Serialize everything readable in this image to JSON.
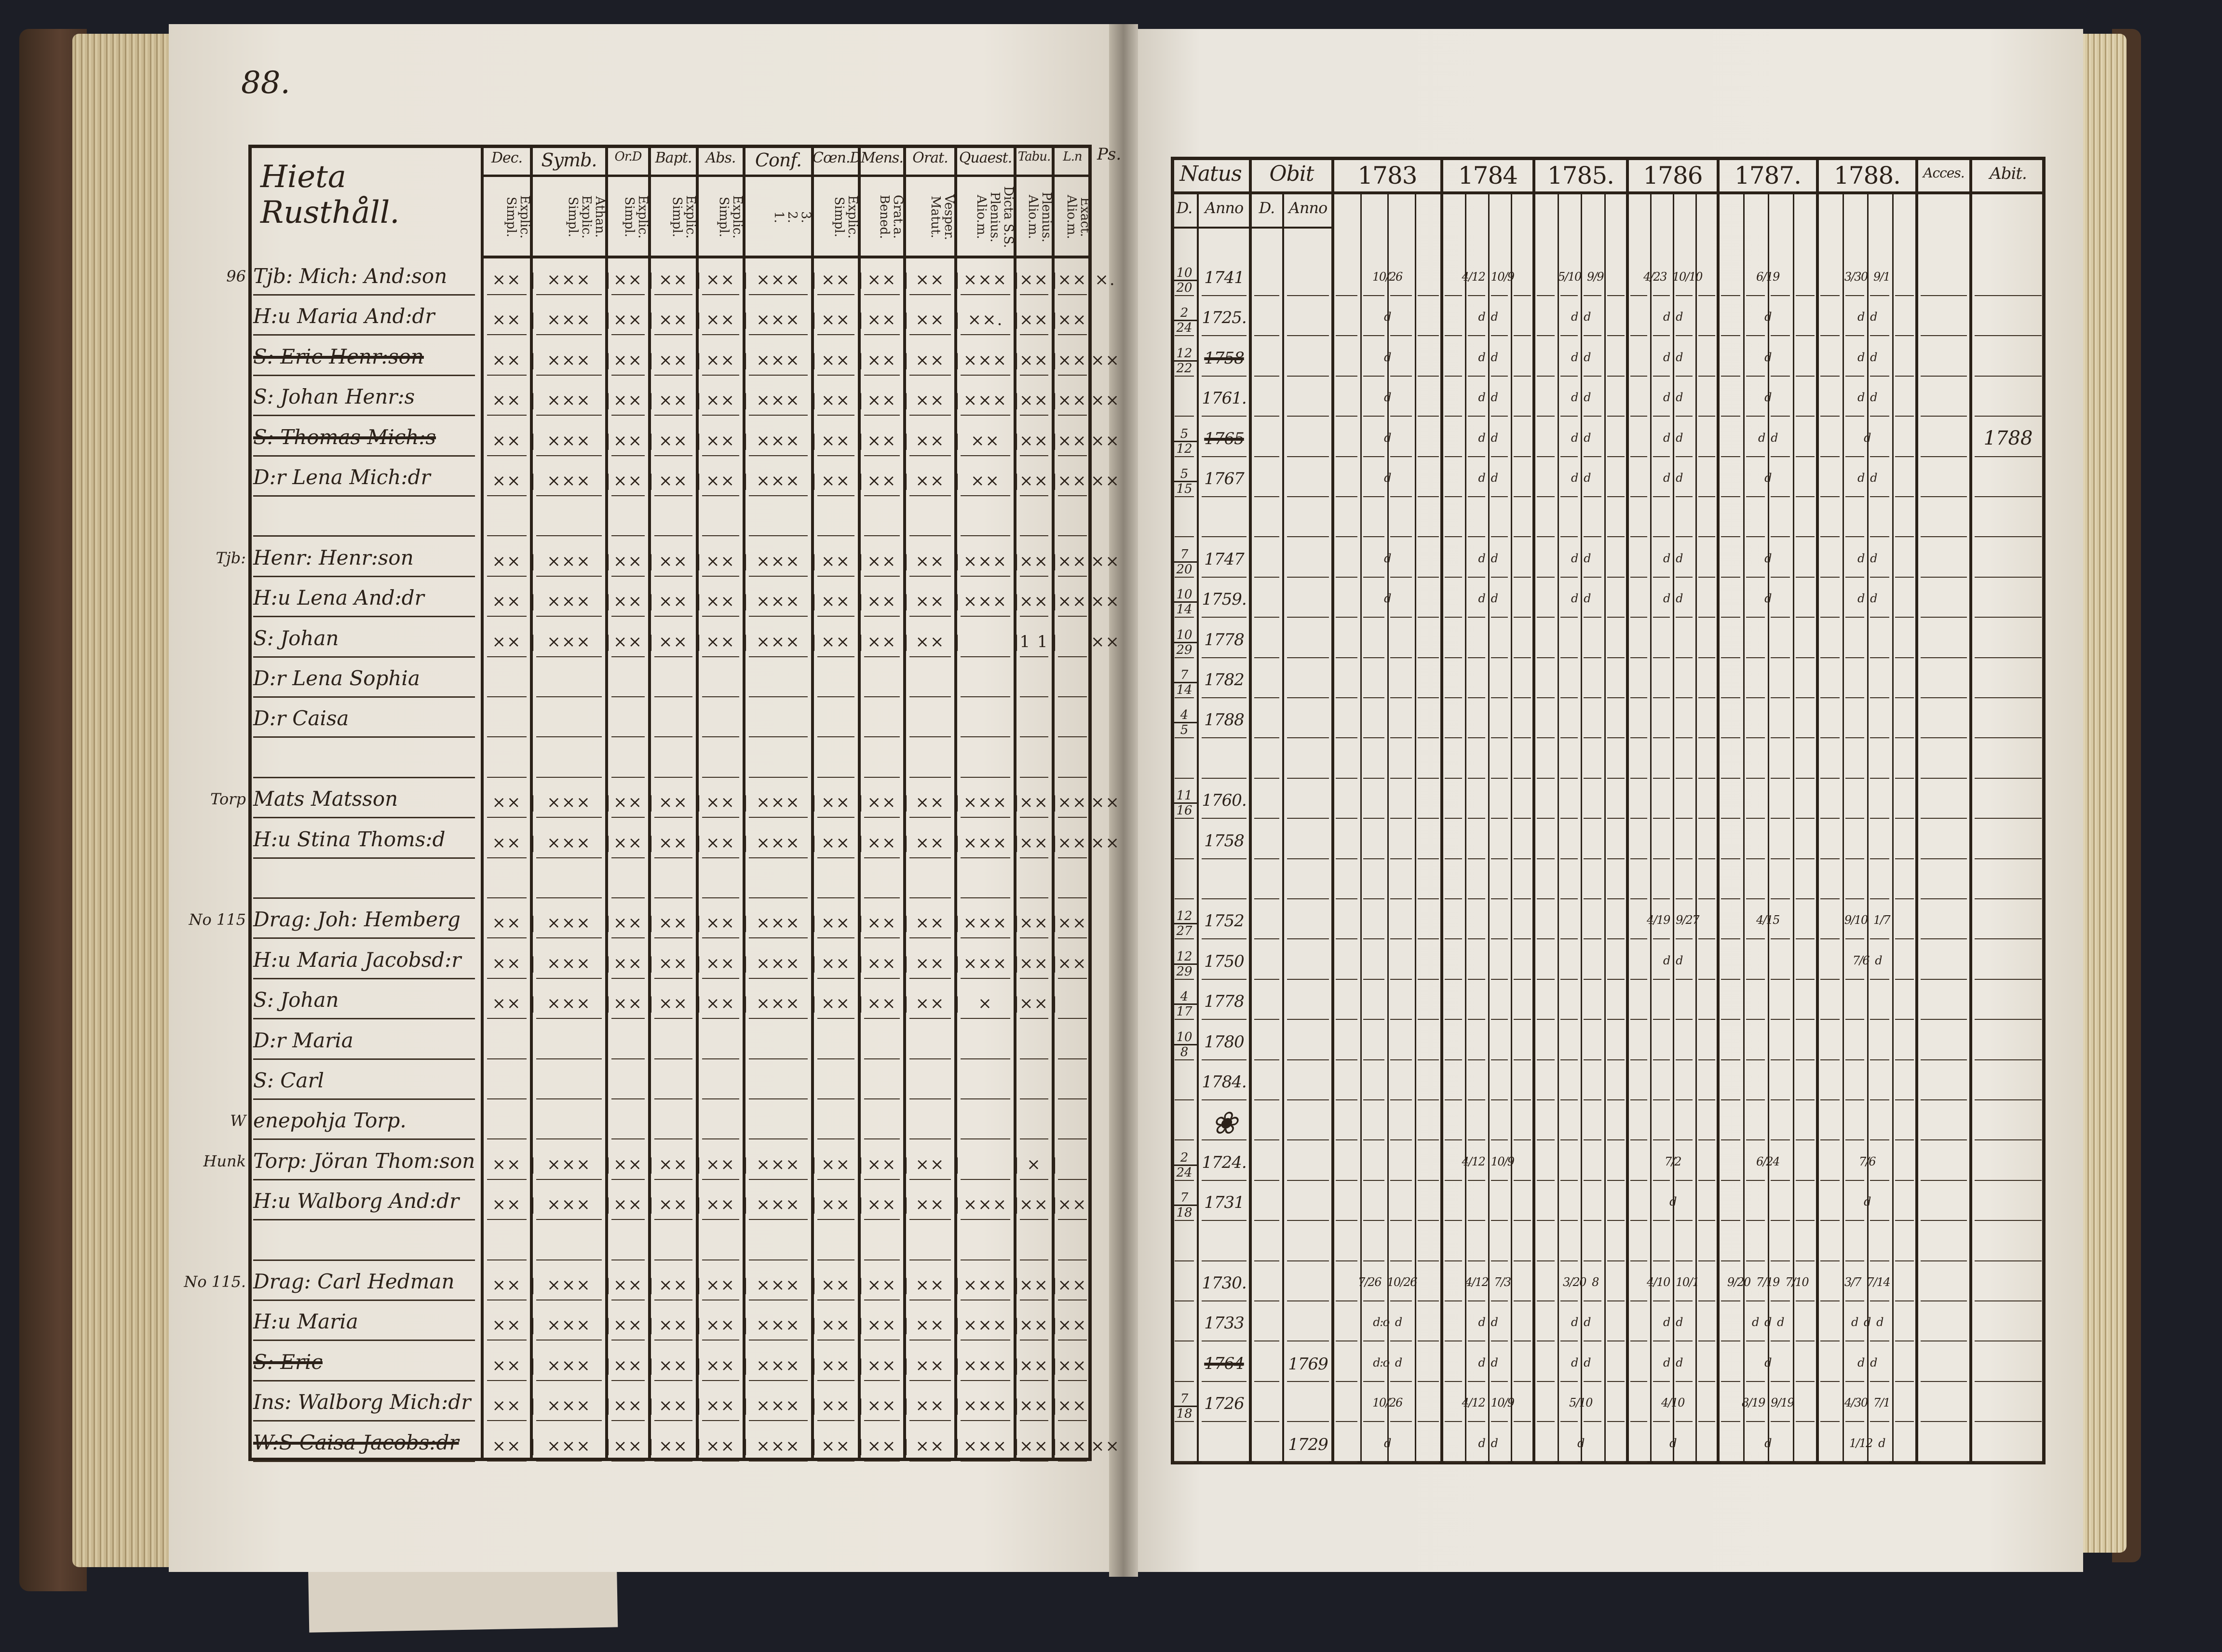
{
  "left_page": {
    "page_number": "88.",
    "title": "Hieta Rusthåll.",
    "headers": [
      {
        "top": "Dec.",
        "sub": "Explic.\nSimpl."
      },
      {
        "top": "Symb.",
        "sub": "Athan.\nExplic.\nSimpl."
      },
      {
        "top": "Or.D",
        "sub": "Explic.\nSimpl."
      },
      {
        "top": "Bapt.",
        "sub": "Explic.\nSimpl."
      },
      {
        "top": "Abs.",
        "sub": "Explic.\nSimpl."
      },
      {
        "top": "Conf.",
        "sub": "3.\n2.\n1."
      },
      {
        "top": "Cœn.D",
        "sub": "Explic.\nSimpl."
      },
      {
        "top": "Mens.",
        "sub": "Grat.a.\nBened."
      },
      {
        "top": "Orat.",
        "sub": "Vesper.\nMatut."
      },
      {
        "top": "Quaest.",
        "sub": "Dicta S.S.\nPlenius.\nAlio.m."
      },
      {
        "top": "Tabu.",
        "sub": "Plenius.\nAlio.m."
      },
      {
        "top": "L.n",
        "sub": "Exact.\nAlio.m."
      }
    ],
    "edge_note": "Ps.",
    "rows": [
      {
        "note": "96",
        "name": "Tjb: Mich: And:son",
        "struck": false,
        "marks": "××|×××|××|××|××|×××|××|××|××|×××|××|××",
        "extra": "×."
      },
      {
        "note": "",
        "name": "H:u Maria And:dr",
        "struck": false,
        "marks": "××|×××|××|××|××|×××|××|××|××|××.|××|××",
        "extra": ""
      },
      {
        "note": "",
        "name": "S: Eric Henr:son",
        "struck": true,
        "marks": "××|×××|××|××|××|×××|××|××|××|×××|××|××",
        "extra": "××"
      },
      {
        "note": "",
        "name": "S: Johan Henr:s",
        "struck": false,
        "marks": "××|×××|××|××|××|×××|××|××|××|×××|××|××",
        "extra": "××"
      },
      {
        "note": "",
        "name": "S: Thomas Mich:s",
        "struck": true,
        "marks": "××|×××|××|××|××|×××|××|××|××|××|××|××",
        "extra": "××"
      },
      {
        "note": "",
        "name": "D:r Lena Mich:dr",
        "struck": false,
        "marks": "××|×××|××|××|××|×××|××|××|××|××|××|××",
        "extra": "××"
      },
      {
        "note": "",
        "name": "",
        "struck": false,
        "marks": "",
        "extra": ""
      },
      {
        "note": "Tjb:",
        "name": "Henr: Henr:son",
        "struck": false,
        "marks": "××|×××|××|××|××|×××|××|××|××|×××|××|××",
        "extra": "××"
      },
      {
        "note": "",
        "name": "H:u Lena And:dr",
        "struck": false,
        "marks": "××|×××|××|××|××|×××|××|××|××|×××|××|××",
        "extra": "××"
      },
      {
        "note": "",
        "name": "S: Johan",
        "struck": false,
        "marks": "××|×××|××|××|××|×××|××|××|××||1 1|",
        "extra": "××"
      },
      {
        "note": "",
        "name": "D:r Lena Sophia",
        "struck": false,
        "marks": "",
        "extra": ""
      },
      {
        "note": "",
        "name": "D:r Caisa",
        "struck": false,
        "marks": "",
        "extra": ""
      },
      {
        "note": "",
        "name": "",
        "struck": false,
        "marks": "",
        "extra": ""
      },
      {
        "note": "Torp",
        "name": "Mats Matsson",
        "struck": false,
        "marks": "××|×××|××|××|××|×××|××|××|××|×××|××|××",
        "extra": "××"
      },
      {
        "note": "",
        "name": "H:u Stina Thoms:d",
        "struck": false,
        "marks": "××|×××|××|××|××|×××|××|××|××|×××|××|××",
        "extra": "××"
      },
      {
        "note": "",
        "name": "",
        "struck": false,
        "marks": "",
        "extra": ""
      },
      {
        "note": "No 115",
        "name": "Drag: Joh: Hemberg",
        "struck": false,
        "marks": "××|×××|××|××|××|×××|××|××|××|×××|××|××",
        "extra": ""
      },
      {
        "note": "",
        "name": "H:u Maria Jacobsd:r",
        "struck": false,
        "marks": "××|×××|××|××|××|×××|××|××|××|×××|××|××",
        "extra": ""
      },
      {
        "note": "",
        "name": "S: Johan",
        "struck": false,
        "marks": "××|×××|××|××|××|×××|××|××|××|×|××|",
        "extra": ""
      },
      {
        "note": "",
        "name": "D:r Maria",
        "struck": false,
        "marks": "",
        "extra": ""
      },
      {
        "note": "",
        "name": "S: Carl",
        "struck": false,
        "marks": "",
        "extra": ""
      },
      {
        "note": "W",
        "name": "enepohja Torp.",
        "struck": false,
        "marks": "",
        "extra": ""
      },
      {
        "note": "Hunk",
        "name": "Torp: Jöran Thom:son",
        "struck": false,
        "marks": "××|×××|××|××|××|×××|××|××|××||×|",
        "extra": ""
      },
      {
        "note": "",
        "name": "H:u Walborg And:dr",
        "struck": false,
        "marks": "××|×××|××|××|××|×××|××|××|××|×××|××|××",
        "extra": ""
      },
      {
        "note": "",
        "name": "",
        "struck": false,
        "marks": "",
        "extra": ""
      },
      {
        "note": "No 115.",
        "name": "Drag: Carl Hedman",
        "struck": false,
        "marks": "××|×××|××|××|××|×××|××|××|××|×××|××|××",
        "extra": ""
      },
      {
        "note": "",
        "name": "H:u Maria",
        "struck": false,
        "marks": "××|×××|××|××|××|×××|××|××|××|×××|××|××",
        "extra": ""
      },
      {
        "note": "",
        "name": "S: Eric",
        "struck": true,
        "marks": "××|×××|××|××|××|×××|××|××|××|×××|××|××",
        "extra": ""
      },
      {
        "note": "",
        "name": "Ins: Walborg Mich:dr",
        "struck": false,
        "marks": "××|×××|××|××|××|×××|××|××|××|×××|××|××",
        "extra": ""
      },
      {
        "note": "",
        "name": "W:S Caisa Jacobs:dr",
        "struck": true,
        "marks": "××|×××|××|××|××|×××|××|××|××|×××|××|××",
        "extra": "××"
      }
    ]
  },
  "right_page": {
    "headers": {
      "natus": "Natus",
      "obit": "Obit",
      "d": "D.",
      "anno": "Anno",
      "years": [
        "1783",
        "1784",
        "1785.",
        "1786",
        "1787.",
        "1788."
      ],
      "acces": "Acces.",
      "abit": "Abit."
    },
    "rows": [
      {
        "day": [
          "10",
          "20"
        ],
        "anno": "1741",
        "struck": false,
        "obit": "",
        "years": [
          "10/26",
          "4/12  10/9",
          "5/10  9/9",
          "4/23  10/10",
          "6/19",
          "3/30  9/1"
        ],
        "abit": ""
      },
      {
        "day": [
          "2",
          "24"
        ],
        "anno": "1725.",
        "struck": false,
        "obit": "",
        "years": [
          "d",
          "d  d",
          "d  d",
          "d  d",
          "d",
          "d  d"
        ],
        "abit": ""
      },
      {
        "day": [
          "12",
          "22"
        ],
        "anno": "1758",
        "struck": true,
        "obit": "",
        "years": [
          "d",
          "d  d",
          "d  d",
          "d  d",
          "d",
          "d  d"
        ],
        "abit": ""
      },
      {
        "day": null,
        "anno": "1761.",
        "struck": false,
        "obit": "",
        "years": [
          "d",
          "d  d",
          "d  d",
          "d  d",
          "d",
          "d  d"
        ],
        "abit": ""
      },
      {
        "day": [
          "5",
          "12"
        ],
        "anno": "1765",
        "struck": true,
        "obit": "",
        "years": [
          "d",
          "d  d",
          "d  d",
          "d  d",
          "d  d",
          "d"
        ],
        "abit": "1788"
      },
      {
        "day": [
          "5",
          "15"
        ],
        "anno": "1767",
        "struck": false,
        "obit": "",
        "years": [
          "d",
          "d  d",
          "d  d",
          "d  d",
          "d",
          "d  d"
        ],
        "abit": ""
      },
      {
        "day": null,
        "anno": "",
        "struck": false,
        "obit": "",
        "years": [
          "",
          "",
          "",
          "",
          "",
          ""
        ],
        "abit": ""
      },
      {
        "day": [
          "7",
          "20"
        ],
        "anno": "1747",
        "struck": false,
        "obit": "",
        "years": [
          "d",
          "d  d",
          "d  d",
          "d  d",
          "d",
          "d  d"
        ],
        "abit": ""
      },
      {
        "day": [
          "10",
          "14"
        ],
        "anno": "1759.",
        "struck": false,
        "obit": "",
        "years": [
          "d",
          "d  d",
          "d  d",
          "d  d",
          "d",
          "d  d"
        ],
        "abit": ""
      },
      {
        "day": [
          "10",
          "29"
        ],
        "anno": "1778",
        "struck": false,
        "obit": "",
        "years": [
          "",
          "",
          "",
          "",
          "",
          ""
        ],
        "abit": ""
      },
      {
        "day": [
          "7",
          "14"
        ],
        "anno": "1782",
        "struck": false,
        "obit": "",
        "years": [
          "",
          "",
          "",
          "",
          "",
          ""
        ],
        "abit": ""
      },
      {
        "day": [
          "4",
          "5"
        ],
        "anno": "1788",
        "struck": false,
        "obit": "",
        "years": [
          "",
          "",
          "",
          "",
          "",
          ""
        ],
        "abit": ""
      },
      {
        "day": null,
        "anno": "",
        "struck": false,
        "obit": "",
        "years": [
          "",
          "",
          "",
          "",
          "",
          ""
        ],
        "abit": ""
      },
      {
        "day": [
          "11",
          "16"
        ],
        "anno": "1760.",
        "struck": false,
        "obit": "",
        "years": [
          "",
          "",
          "",
          "",
          "",
          ""
        ],
        "abit": ""
      },
      {
        "day": null,
        "anno": "1758",
        "struck": false,
        "obit": "",
        "years": [
          "",
          "",
          "",
          "",
          "",
          ""
        ],
        "abit": ""
      },
      {
        "day": null,
        "anno": "",
        "struck": false,
        "obit": "",
        "years": [
          "",
          "",
          "",
          "",
          "",
          ""
        ],
        "abit": ""
      },
      {
        "day": [
          "12",
          "27"
        ],
        "anno": "1752",
        "struck": false,
        "obit": "",
        "years": [
          "",
          "",
          "",
          "4/19  9/27",
          "4/15",
          "9/10  1/7"
        ],
        "abit": ""
      },
      {
        "day": [
          "12",
          "29"
        ],
        "anno": "1750",
        "struck": false,
        "obit": "",
        "years": [
          "",
          "",
          "",
          "d  d",
          "",
          "7/6  d"
        ],
        "abit": ""
      },
      {
        "day": [
          "4",
          "17"
        ],
        "anno": "1778",
        "struck": false,
        "obit": "",
        "years": [
          "",
          "",
          "",
          "",
          "",
          ""
        ],
        "abit": ""
      },
      {
        "day": [
          "10",
          "8"
        ],
        "anno": "1780",
        "struck": false,
        "obit": "",
        "years": [
          "",
          "",
          "",
          "",
          "",
          ""
        ],
        "abit": ""
      },
      {
        "day": null,
        "anno": "1784.",
        "struck": false,
        "obit": "",
        "years": [
          "",
          "",
          "",
          "",
          "",
          ""
        ],
        "abit": ""
      },
      {
        "day": null,
        "anno": "",
        "struck": false,
        "obit": "",
        "years": [
          "",
          "",
          "",
          "",
          "",
          ""
        ],
        "abit": "",
        "ornament": true
      },
      {
        "day": [
          "2",
          "24"
        ],
        "anno": "1724.",
        "struck": false,
        "obit": "",
        "years": [
          "",
          "4/12  10/9",
          "",
          "7/2",
          "6/24",
          "7/6"
        ],
        "abit": ""
      },
      {
        "day": [
          "7",
          "18"
        ],
        "anno": "1731",
        "struck": false,
        "obit": "",
        "years": [
          "",
          "",
          "",
          "d",
          "",
          "d"
        ],
        "abit": ""
      },
      {
        "day": null,
        "anno": "",
        "struck": false,
        "obit": "",
        "years": [
          "",
          "",
          "",
          "",
          "",
          ""
        ],
        "abit": ""
      },
      {
        "day": null,
        "anno": "1730.",
        "struck": false,
        "obit": "",
        "years": [
          "7/26  10/26",
          "4/12  7/3",
          "3/20  8",
          "4/10  10/1",
          "9/20  7/19  7/10",
          "3/7  7/14"
        ],
        "abit": ""
      },
      {
        "day": null,
        "anno": "1733",
        "struck": false,
        "obit": "",
        "years": [
          "d:o  d",
          "d  d",
          "d  d",
          "d  d",
          "d  d  d",
          "d  d  d"
        ],
        "abit": ""
      },
      {
        "day": null,
        "anno": "1764",
        "struck": true,
        "obit": "1769",
        "years": [
          "d:o  d",
          "d  d",
          "d  d",
          "d  d",
          "d",
          "d  d"
        ],
        "abit": ""
      },
      {
        "day": [
          "7",
          "18"
        ],
        "anno": "1726",
        "struck": false,
        "obit": "",
        "years": [
          "10/26",
          "4/12  10/9",
          "5/10",
          "4/10",
          "8/19  9/19",
          "4/30  7/1"
        ],
        "abit": ""
      },
      {
        "day": null,
        "anno": "",
        "struck": false,
        "obit": "1729",
        "years": [
          "d",
          "d  d",
          "d",
          "d",
          "d",
          "1/12  d"
        ],
        "abit": ""
      }
    ]
  },
  "colors": {
    "ink": "#2a2118",
    "paper": "#ebe6dd",
    "background": "#1c1e26"
  }
}
